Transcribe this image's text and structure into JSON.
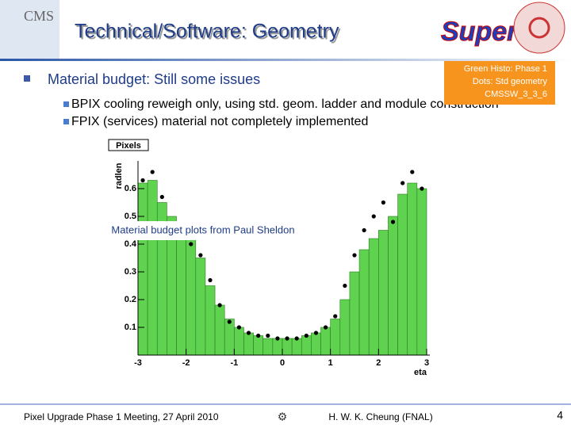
{
  "header": {
    "title": "Technical/Software: Geometry",
    "logo_left": "CMS",
    "logo_right": "Super"
  },
  "bullets": {
    "main": "Material budget: Still some issues",
    "sub": [
      "BPIX cooling reweigh only, using std. geom. ladder and module construction",
      "FPIX (services) material not completely implemented"
    ]
  },
  "annotation": [
    "Green Histo: Phase 1",
    "Dots: Std geometry",
    "CMSSW_3_3_6"
  ],
  "caption": "Material budget plots from Paul Sheldon",
  "footer": {
    "left": "Pixel Upgrade Phase 1 Meeting, 27 April 2010",
    "center": "H. W. K. Cheung (FNAL)",
    "page": "4"
  },
  "chart_data": {
    "type": "histogram",
    "title": "Pixels",
    "xlabel": "eta",
    "ylabel": "radlen",
    "bins": [
      -3,
      -2.8,
      -2.6,
      -2.4,
      -2.2,
      -2,
      -1.8,
      -1.6,
      -1.4,
      -1.2,
      -1,
      -0.8,
      -0.6,
      -0.4,
      -0.2,
      0,
      0.2,
      0.4,
      0.6,
      0.8,
      1,
      1.2,
      1.4,
      1.6,
      1.8,
      2,
      2.2,
      2.4,
      2.6,
      2.8,
      3
    ],
    "values": [
      0.62,
      0.63,
      0.55,
      0.5,
      0.45,
      0.42,
      0.35,
      0.25,
      0.18,
      0.13,
      0.1,
      0.08,
      0.07,
      0.06,
      0.06,
      0.06,
      0.06,
      0.07,
      0.08,
      0.1,
      0.13,
      0.2,
      0.3,
      0.38,
      0.42,
      0.45,
      0.5,
      0.58,
      0.62,
      0.6
    ],
    "color": "#5fd34f",
    "overlay": {
      "type": "scatter",
      "color": "#000000",
      "x": [
        -2.9,
        -2.7,
        -2.5,
        -2.3,
        -2.1,
        -1.9,
        -1.7,
        -1.5,
        -1.3,
        -1.1,
        -0.9,
        -0.7,
        -0.5,
        -0.3,
        -0.1,
        0.1,
        0.3,
        0.5,
        0.7,
        0.9,
        1.1,
        1.3,
        1.5,
        1.7,
        1.9,
        2.1,
        2.3,
        2.5,
        2.7,
        2.9
      ],
      "values": [
        0.63,
        0.66,
        0.57,
        0.45,
        0.43,
        0.4,
        0.36,
        0.27,
        0.18,
        0.12,
        0.1,
        0.08,
        0.07,
        0.07,
        0.06,
        0.06,
        0.06,
        0.07,
        0.08,
        0.1,
        0.14,
        0.25,
        0.36,
        0.45,
        0.5,
        0.55,
        0.48,
        0.62,
        0.66,
        0.6
      ]
    },
    "xlim": [
      -3,
      3
    ],
    "ylim": [
      0,
      0.7
    ],
    "xticks": [
      -3,
      -2,
      -1,
      0,
      1,
      2,
      3
    ],
    "yticks": [
      0.1,
      0.2,
      0.3,
      0.4,
      0.5,
      0.6
    ]
  }
}
